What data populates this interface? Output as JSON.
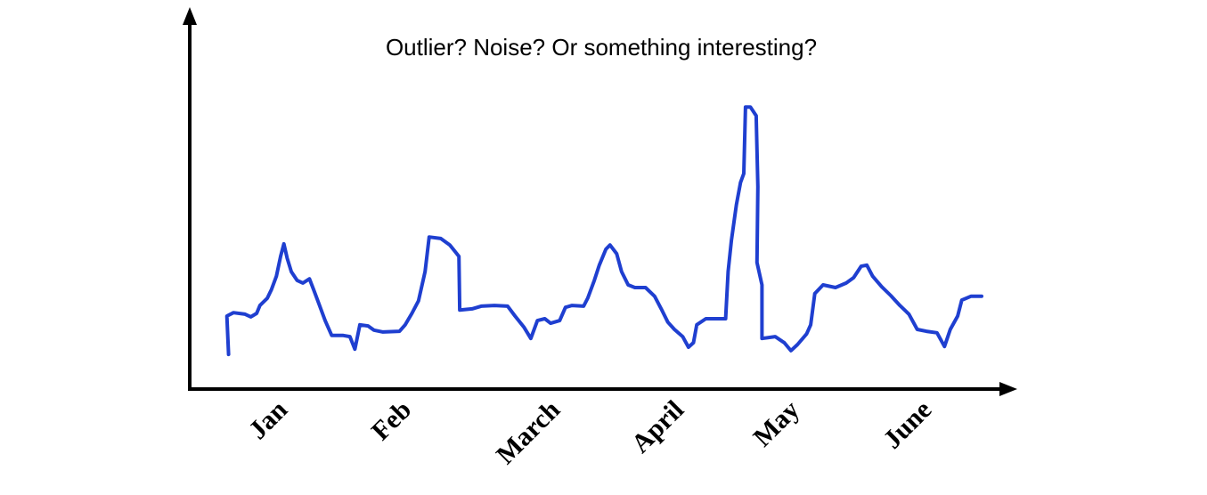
{
  "chart_data": {
    "type": "line",
    "title": "Outlier? Noise? Or something interesting?",
    "color": "#1f3fd0",
    "xlim": [
      0,
      100
    ],
    "ylim": [
      0,
      100
    ],
    "xticks": [
      {
        "value": 12,
        "label": "Jan"
      },
      {
        "value": 27,
        "label": "Feb"
      },
      {
        "value": 45,
        "label": "March"
      },
      {
        "value": 60,
        "label": "April"
      },
      {
        "value": 74,
        "label": "May"
      },
      {
        "value": 90,
        "label": "June"
      }
    ],
    "x": [
      4.7,
      4.5,
      5.3,
      6.7,
      7.4,
      8.1,
      8.5,
      9.4,
      9.9,
      10.5,
      11.0,
      11.4,
      11.8,
      12.3,
      13.0,
      13.7,
      14.5,
      15.0,
      15.6,
      16.4,
      17.2,
      18.6,
      19.4,
      20.0,
      20.6,
      21.6,
      22.3,
      23.4,
      25.4,
      26.1,
      26.9,
      27.7,
      28.5,
      29.0,
      30.4,
      31.5,
      32.6,
      32.7,
      34.2,
      35.3,
      36.9,
      38.5,
      39.4,
      40.5,
      41.3,
      42.1,
      43.0,
      43.7,
      44.8,
      45.5,
      46.3,
      47.7,
      48.2,
      49.0,
      49.6,
      50.4,
      50.9,
      51.7,
      52.3,
      53.1,
      53.9,
      55.2,
      56.3,
      57.1,
      57.9,
      58.7,
      59.7,
      60.4,
      61.0,
      61.4,
      62.5,
      64.9,
      65.2,
      65.6,
      66.2,
      66.7,
      67.1,
      67.3,
      67.9,
      68.6,
      68.8,
      68.7,
      69.3,
      69.3,
      70.9,
      72.0,
      72.8,
      73.6,
      74.7,
      75.2,
      75.7,
      76.7,
      78.2,
      79.5,
      80.4,
      81.3,
      82.0,
      82.7,
      83.8,
      84.9,
      86.0,
      87.1,
      88.1,
      89.2,
      90.5,
      91.4,
      92.1,
      93.0,
      93.5,
      94.6,
      95.9
    ],
    "values": [
      9.1,
      19.2,
      20.1,
      19.7,
      19.0,
      19.9,
      22.0,
      23.9,
      26.2,
      29.7,
      34.9,
      38.2,
      34.4,
      30.9,
      28.6,
      27.9,
      29.0,
      26.2,
      22.7,
      18.0,
      14.1,
      14.1,
      13.8,
      10.5,
      16.9,
      16.6,
      15.5,
      15.0,
      15.2,
      16.9,
      19.9,
      23.2,
      30.9,
      40.0,
      39.6,
      37.9,
      34.9,
      20.8,
      21.1,
      21.8,
      22.0,
      21.8,
      19.2,
      16.2,
      13.3,
      18.0,
      18.5,
      17.3,
      18.0,
      21.5,
      22.0,
      21.8,
      23.9,
      28.6,
      32.6,
      36.8,
      37.9,
      35.6,
      30.9,
      27.4,
      26.7,
      26.7,
      24.4,
      21.1,
      17.6,
      15.7,
      13.8,
      11.0,
      12.2,
      16.9,
      18.5,
      18.5,
      30.9,
      39.1,
      48.5,
      54.3,
      56.7,
      74.2,
      74.2,
      71.9,
      53.2,
      33.3,
      27.4,
      13.3,
      13.8,
      12.2,
      10.1,
      11.7,
      14.5,
      16.9,
      25.1,
      27.4,
      26.7,
      27.9,
      29.3,
      32.3,
      32.6,
      29.7,
      26.9,
      24.6,
      22.0,
      19.7,
      15.7,
      15.2,
      14.8,
      11.2,
      15.7,
      19.2,
      23.4,
      24.4,
      24.4
    ]
  }
}
